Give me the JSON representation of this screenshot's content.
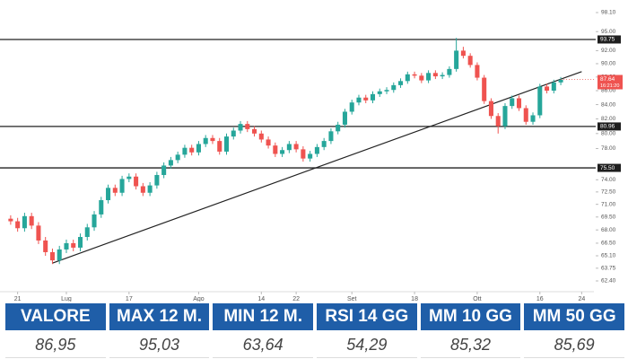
{
  "chart_data": {
    "type": "candlestick",
    "open": [
      69.3,
      69.0,
      68.2,
      69.6,
      68.5,
      66.8,
      65.5,
      64.6,
      65.8,
      66.5,
      66.0,
      67.2,
      68.3,
      69.8,
      71.5,
      73.0,
      72.4,
      74.1,
      74.4,
      73.2,
      72.4,
      73.3,
      74.6,
      75.8,
      76.5,
      77.2,
      78.1,
      77.5,
      78.6,
      79.4,
      79.0,
      77.6,
      79.6,
      80.4,
      81.3,
      80.6,
      80.0,
      79.2,
      78.4,
      77.3,
      77.8,
      78.6,
      77.9,
      76.7,
      77.3,
      78.2,
      79.0,
      80.3,
      81.2,
      83.0,
      84.3,
      85.0,
      84.6,
      85.5,
      85.9,
      86.1,
      86.8,
      87.4,
      88.4,
      88.2,
      87.5,
      88.6,
      88.1,
      88.3,
      89.2,
      92.0,
      91.2,
      89.8,
      87.9,
      84.5,
      82.4,
      81.0,
      83.8,
      84.9,
      83.5,
      81.6,
      82.5,
      86.6,
      86.0,
      87.2
    ],
    "high": [
      69.7,
      69.4,
      70.0,
      70.0,
      68.9,
      67.2,
      65.9,
      66.2,
      66.9,
      66.9,
      67.6,
      68.7,
      70.2,
      71.9,
      73.4,
      73.4,
      74.5,
      74.8,
      74.8,
      73.6,
      73.7,
      75.0,
      76.2,
      76.9,
      77.6,
      78.5,
      78.5,
      79.0,
      79.8,
      79.8,
      79.4,
      80.0,
      80.8,
      81.7,
      81.7,
      81.0,
      80.4,
      79.6,
      78.8,
      78.2,
      79.0,
      79.0,
      78.3,
      77.7,
      78.6,
      79.4,
      80.7,
      81.6,
      83.4,
      84.7,
      85.4,
      85.4,
      85.9,
      86.3,
      86.5,
      87.2,
      87.8,
      88.8,
      88.8,
      88.6,
      89.0,
      89.0,
      88.7,
      89.6,
      94.0,
      92.6,
      91.6,
      90.2,
      88.3,
      84.9,
      82.8,
      84.2,
      85.3,
      85.3,
      83.9,
      82.9,
      87.0,
      87.0,
      87.6,
      88.0
    ],
    "low": [
      68.6,
      67.8,
      67.8,
      68.1,
      66.4,
      65.1,
      64.2,
      64.2,
      65.4,
      65.6,
      65.6,
      66.8,
      67.9,
      69.4,
      71.1,
      72.0,
      72.0,
      73.7,
      72.8,
      72.0,
      72.0,
      72.9,
      74.2,
      75.4,
      76.1,
      76.8,
      77.1,
      77.1,
      78.2,
      78.6,
      77.2,
      77.2,
      79.2,
      80.0,
      80.2,
      79.6,
      78.8,
      78.0,
      76.9,
      76.9,
      77.4,
      77.5,
      76.3,
      76.3,
      76.9,
      77.8,
      78.6,
      79.9,
      80.8,
      82.6,
      83.9,
      84.2,
      84.2,
      85.1,
      85.5,
      85.7,
      86.4,
      87.0,
      87.8,
      87.1,
      87.1,
      87.7,
      87.7,
      87.9,
      88.8,
      90.8,
      89.4,
      87.5,
      84.1,
      82.0,
      80.0,
      80.6,
      83.4,
      83.1,
      81.2,
      81.2,
      82.1,
      85.6,
      85.6,
      86.8
    ],
    "close": [
      69.0,
      68.2,
      69.6,
      68.5,
      66.8,
      65.5,
      64.6,
      65.8,
      66.5,
      66.0,
      67.2,
      68.3,
      69.8,
      71.5,
      73.0,
      72.4,
      74.1,
      74.4,
      73.2,
      72.4,
      73.3,
      74.6,
      75.8,
      76.5,
      77.2,
      78.1,
      77.5,
      78.6,
      79.4,
      79.0,
      77.6,
      79.6,
      80.4,
      81.3,
      80.6,
      80.0,
      79.2,
      78.4,
      77.3,
      77.8,
      78.6,
      77.9,
      76.7,
      77.3,
      78.2,
      79.0,
      80.3,
      81.2,
      83.0,
      84.3,
      85.0,
      84.6,
      85.5,
      85.9,
      86.1,
      86.8,
      87.4,
      88.4,
      88.2,
      87.5,
      88.6,
      88.1,
      88.3,
      89.2,
      92.0,
      91.2,
      89.8,
      87.9,
      84.5,
      82.4,
      81.0,
      83.8,
      84.9,
      83.5,
      81.6,
      82.5,
      86.6,
      86.0,
      87.2,
      87.6
    ],
    "up_color": "#26a69a",
    "down_color": "#ef5350",
    "log_scale": true,
    "xlim": [
      -0.5,
      83.5
    ],
    "xticks": [
      {
        "value": 1,
        "label": "21"
      },
      {
        "value": 8,
        "label": "Lug"
      },
      {
        "value": 17,
        "label": "17"
      },
      {
        "value": 27,
        "label": "Ago"
      },
      {
        "value": 36,
        "label": "14"
      },
      {
        "value": 41,
        "label": "22"
      },
      {
        "value": 49,
        "label": "Set"
      },
      {
        "value": 58,
        "label": "18"
      },
      {
        "value": 67,
        "label": "Ott"
      },
      {
        "value": 76,
        "label": "16"
      },
      {
        "value": 82,
        "label": "24"
      }
    ],
    "ylim": [
      62.4,
      98.1
    ],
    "yticks": [
      {
        "value": 62.4,
        "label": "62.40"
      },
      {
        "value": 63.75,
        "label": "63.75"
      },
      {
        "value": 65.1,
        "label": "65.10"
      },
      {
        "value": 66.5,
        "label": "66.50"
      },
      {
        "value": 68,
        "label": "68.00"
      },
      {
        "value": 69.5,
        "label": "69.50"
      },
      {
        "value": 71,
        "label": "71.00"
      },
      {
        "value": 72.5,
        "label": "72.50"
      },
      {
        "value": 74,
        "label": "74.00"
      },
      {
        "value": 78,
        "label": "78.00"
      },
      {
        "value": 80,
        "label": "80.00"
      },
      {
        "value": 82,
        "label": "82.00"
      },
      {
        "value": 84,
        "label": "84.00"
      },
      {
        "value": 86,
        "label": "86.00"
      },
      {
        "value": 88,
        "label": "88.00"
      },
      {
        "value": 90,
        "label": "90.00"
      },
      {
        "value": 92,
        "label": "92.00"
      },
      {
        "value": 95,
        "label": "95.00"
      },
      {
        "value": 98.1,
        "label": "98.10"
      }
    ],
    "levels": [
      {
        "value": 93.75,
        "label": "93.75"
      },
      {
        "value": 80.96,
        "label": "80.96"
      },
      {
        "value": 75.5,
        "label": "75.50"
      }
    ],
    "trendline": {
      "x": [
        6,
        82
      ],
      "y": [
        64.3,
        88.8
      ]
    },
    "last_price": {
      "value": 87.64,
      "label": "87.64"
    },
    "countdown": "16:21:20"
  },
  "table": {
    "headers": [
      "VALORE",
      "MAX 12 M.",
      "MIN 12 M.",
      "RSI 14 GG",
      "MM 10 GG",
      "MM 50 GG"
    ],
    "values": [
      "86,95",
      "95,03",
      "63,64",
      "54,29",
      "85,32",
      "85,69"
    ]
  }
}
